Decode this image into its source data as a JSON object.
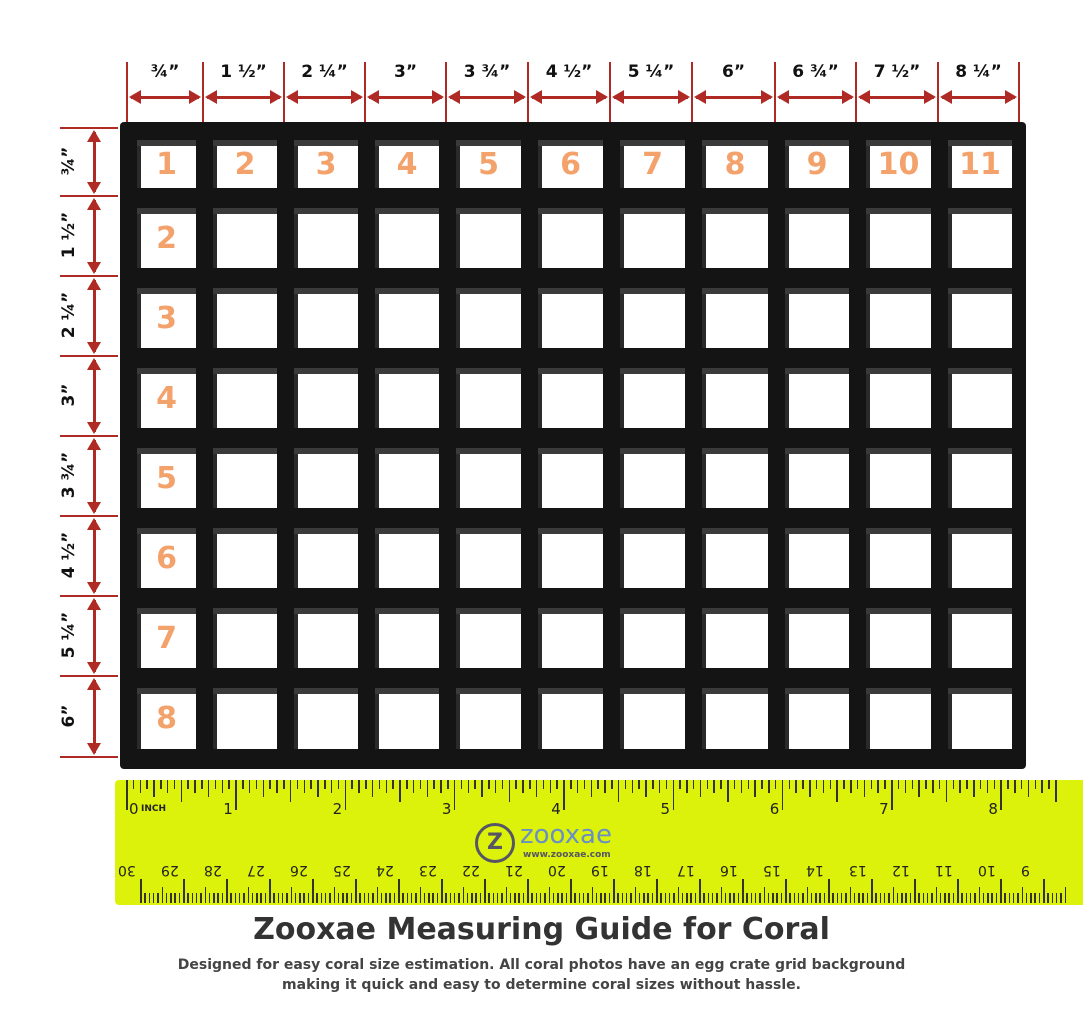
{
  "column_labels": [
    "¾”",
    "1 ½”",
    "2 ¼”",
    "3”",
    "3 ¾”",
    "4 ½”",
    "5 ¼”",
    "6”",
    "6 ¾”",
    "7 ½”",
    "8 ¼”"
  ],
  "row_labels": [
    "¾”",
    "1 ½”",
    "2 ¼”",
    "3”",
    "3 ¾”",
    "4 ½”",
    "5 ¼”",
    "6”"
  ],
  "column_numbers": [
    "1",
    "2",
    "3",
    "4",
    "5",
    "6",
    "7",
    "8",
    "9",
    "10",
    "11"
  ],
  "row_numbers": [
    "2",
    "3",
    "4",
    "5",
    "6",
    "7",
    "8"
  ],
  "ruler": {
    "inch_label": "INCH",
    "inch_numbers": [
      "0",
      "1",
      "2",
      "3",
      "4",
      "5",
      "6",
      "7",
      "8"
    ],
    "cm_numbers": [
      "30",
      "29",
      "28",
      "27",
      "26",
      "25",
      "24",
      "23",
      "22",
      "21",
      "20",
      "19",
      "18",
      "17",
      "16",
      "15",
      "14",
      "13",
      "12",
      "11",
      "10",
      "9"
    ],
    "brand": "zooxae",
    "brand_url": "www.zooxae.com"
  },
  "title": "Zooxae Measuring Guide for Coral",
  "subtitle_line1": "Designed for easy coral size estimation. All coral photos have an egg crate grid background",
  "subtitle_line2": "making it quick and easy to determine coral sizes without hassle.",
  "colors": {
    "arrow": "#b02a25",
    "cell_number": "#f4a26c",
    "ruler": "#dcf20a",
    "grid": "#141414"
  }
}
